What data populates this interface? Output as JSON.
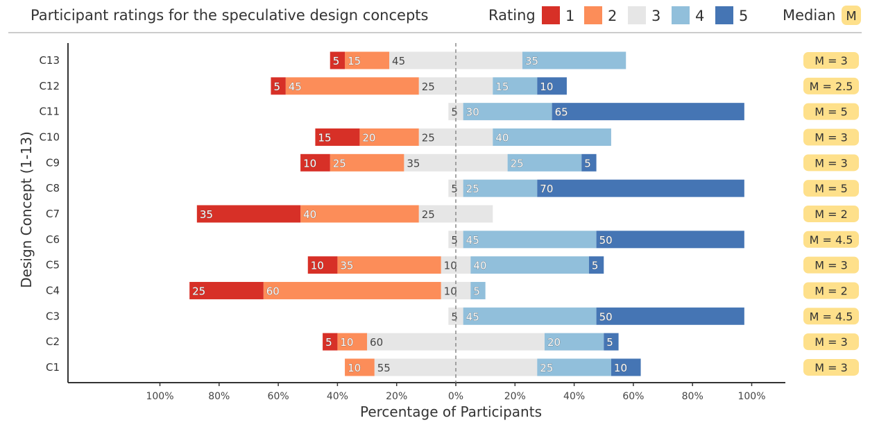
{
  "chart_data": {
    "type": "bar",
    "orientation": "horizontal",
    "stacked": "diverging",
    "title": "Participant ratings for the speculative design concepts",
    "xlabel": "Percentage of Participants",
    "ylabel": "Design Concept (1-13)",
    "xlim": [
      -100,
      100
    ],
    "xticks": [
      -100,
      -80,
      -60,
      -40,
      -20,
      0,
      20,
      40,
      60,
      80,
      100
    ],
    "xtick_labels": [
      "100%",
      "80%",
      "60%",
      "40%",
      "20%",
      "0%",
      "20%",
      "40%",
      "60%",
      "80%",
      "100%"
    ],
    "grid": false,
    "legend": {
      "position": "top-right",
      "title": "Rating",
      "entries": [
        "1",
        "2",
        "3",
        "4",
        "5"
      ],
      "median_label": "Median",
      "median_symbol": "M"
    },
    "colors": {
      "1": "#d73027",
      "2": "#fc8d59",
      "3": "#e6e6e6",
      "4": "#91bfdb",
      "5": "#4575b4",
      "median_badge": "#fee08b"
    },
    "categories": [
      "C1",
      "C2",
      "C3",
      "C4",
      "C5",
      "C6",
      "C7",
      "C8",
      "C9",
      "C10",
      "C11",
      "C12",
      "C13"
    ],
    "series": [
      {
        "name": "1",
        "values": [
          0,
          5,
          0,
          25,
          10,
          0,
          35,
          0,
          10,
          15,
          0,
          5,
          5
        ]
      },
      {
        "name": "2",
        "values": [
          10,
          10,
          0,
          60,
          35,
          0,
          40,
          0,
          25,
          20,
          0,
          45,
          15
        ]
      },
      {
        "name": "3",
        "values": [
          55,
          60,
          5,
          10,
          10,
          5,
          25,
          5,
          35,
          25,
          5,
          25,
          45
        ]
      },
      {
        "name": "4",
        "values": [
          25,
          20,
          45,
          5,
          40,
          45,
          0,
          25,
          25,
          40,
          30,
          15,
          35
        ]
      },
      {
        "name": "5",
        "values": [
          10,
          5,
          50,
          0,
          5,
          50,
          0,
          70,
          5,
          0,
          65,
          10,
          0
        ]
      }
    ],
    "medians": [
      "M = 3",
      "M = 3",
      "M = 4.5",
      "M = 2",
      "M = 3",
      "M = 4.5",
      "M = 2",
      "M = 5",
      "M = 3",
      "M = 3",
      "M = 5",
      "M = 2.5",
      "M = 3"
    ]
  }
}
